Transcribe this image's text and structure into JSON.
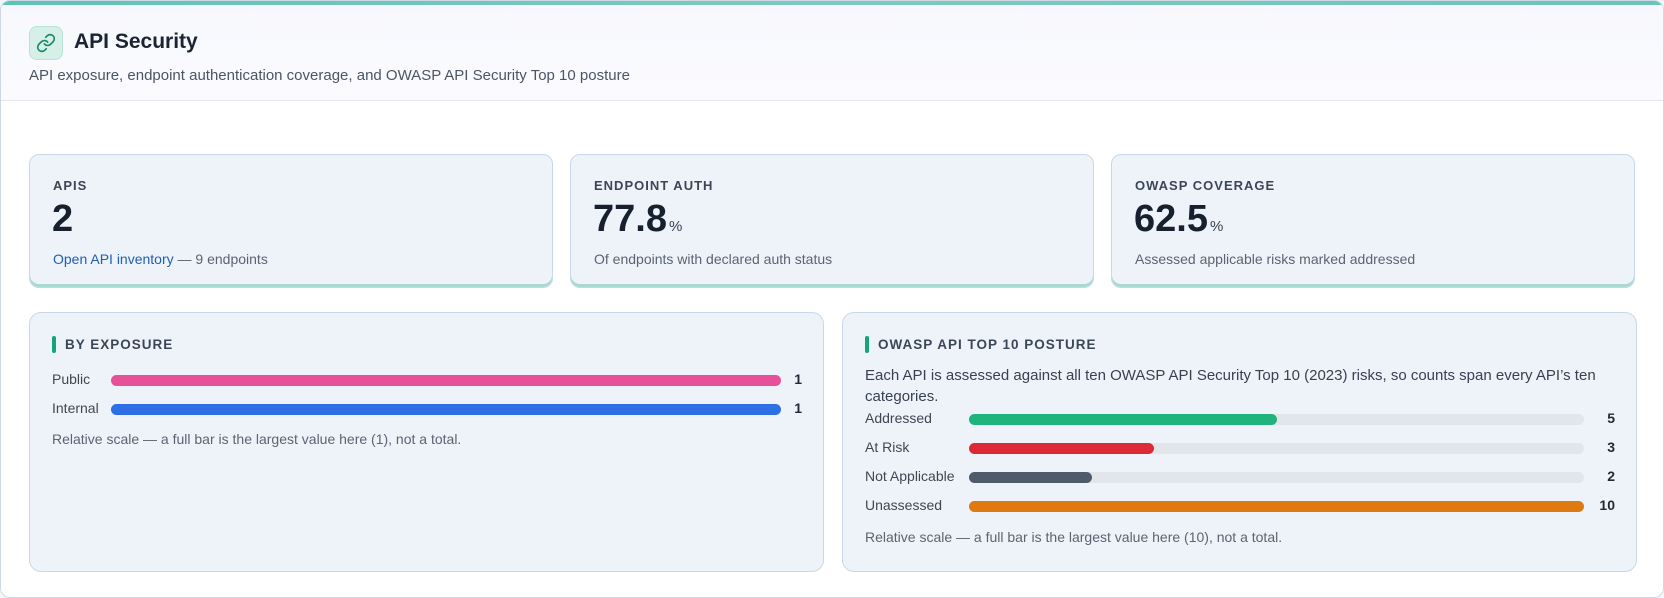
{
  "header": {
    "title": "API Security",
    "subtitle": "API exposure, endpoint authentication coverage, and OWASP API Security Top 10 posture",
    "icon": "link-icon",
    "accent_color": "#5ec3b5"
  },
  "stats": [
    {
      "label": "APIS",
      "value": "2",
      "unit": "",
      "link_text": "Open API inventory",
      "sub": " — 9 endpoints"
    },
    {
      "label": "ENDPOINT AUTH",
      "value": "77.8",
      "unit": "%",
      "sub": "Of endpoints with declared auth status"
    },
    {
      "label": "OWASP COVERAGE",
      "value": "62.5",
      "unit": "%",
      "sub": "Assessed applicable risks marked addressed"
    }
  ],
  "exposure": {
    "title": "BY EXPOSURE",
    "items": [
      {
        "label": "Public",
        "value": 1,
        "display": "1",
        "color": "#e6519a"
      },
      {
        "label": "Internal",
        "value": 1,
        "display": "1",
        "color": "#2f6fe6"
      }
    ],
    "max": 1,
    "note": "Relative scale — a full bar is the largest value here (1), not a total."
  },
  "owasp": {
    "title": "OWASP API TOP 10 POSTURE",
    "description": "Each API is assessed against all ten OWASP API Security Top 10 (2023) risks, so counts span every API’s ten categories.",
    "items": [
      {
        "label": "Addressed",
        "value": 5,
        "display": "5",
        "color": "#1fb37e"
      },
      {
        "label": "At Risk",
        "value": 3,
        "display": "3",
        "color": "#dc2b36"
      },
      {
        "label": "Not Applicable",
        "value": 2,
        "display": "2",
        "color": "#4f5b6b"
      },
      {
        "label": "Unassessed",
        "value": 10,
        "display": "10",
        "color": "#de7a10"
      }
    ],
    "max": 10,
    "note": "Relative scale — a full bar is the largest value here (10), not a total."
  }
}
